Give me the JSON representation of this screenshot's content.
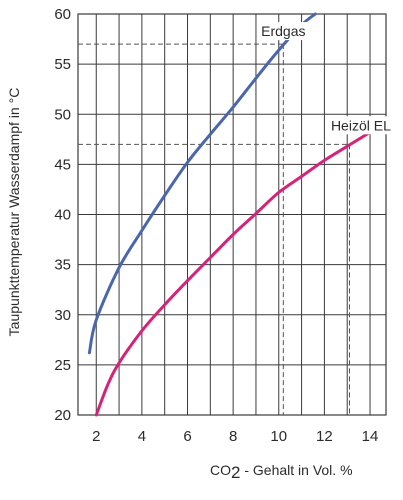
{
  "chart_data": {
    "type": "line",
    "ylabel": "Taupunkttemperatur Wasserdampf in °C",
    "xlabel": {
      "prefix": "CO",
      "subscript": "2",
      "suffix": " - Gehalt in Vol. %"
    },
    "xlim": [
      1.2,
      14.7
    ],
    "ylim": [
      20,
      60
    ],
    "x_ticks": [
      2,
      4,
      6,
      8,
      10,
      12,
      14
    ],
    "y_ticks": [
      20,
      25,
      30,
      35,
      40,
      45,
      50,
      55,
      60
    ],
    "grid": true,
    "series": [
      {
        "name": "Erdgas",
        "color": "#4a67ad",
        "points": [
          [
            1.7,
            26.2
          ],
          [
            2,
            29.5
          ],
          [
            3,
            34.7
          ],
          [
            4,
            38.4
          ],
          [
            5,
            41.9
          ],
          [
            6,
            45.2
          ],
          [
            7,
            48.0
          ],
          [
            8,
            50.7
          ],
          [
            9,
            53.6
          ],
          [
            10,
            56.4
          ],
          [
            11,
            58.9
          ],
          [
            11.6,
            60
          ]
        ]
      },
      {
        "name": "Heizöl EL",
        "color": "#d6237a",
        "points": [
          [
            2,
            20
          ],
          [
            2.5,
            23.0
          ],
          [
            3,
            25.2
          ],
          [
            4,
            28.4
          ],
          [
            5,
            31.0
          ],
          [
            6,
            33.4
          ],
          [
            7,
            35.7
          ],
          [
            8,
            38.0
          ],
          [
            9,
            40.1
          ],
          [
            10,
            42.2
          ],
          [
            11,
            43.8
          ],
          [
            12,
            45.4
          ],
          [
            13,
            46.8
          ],
          [
            14,
            48.2
          ],
          [
            14.7,
            49.2
          ]
        ]
      }
    ],
    "reference_lines": [
      {
        "series": "Erdgas",
        "x": 10.2,
        "y": 57
      },
      {
        "series": "Heizöl EL",
        "x": 13.1,
        "y": 47
      }
    ]
  }
}
